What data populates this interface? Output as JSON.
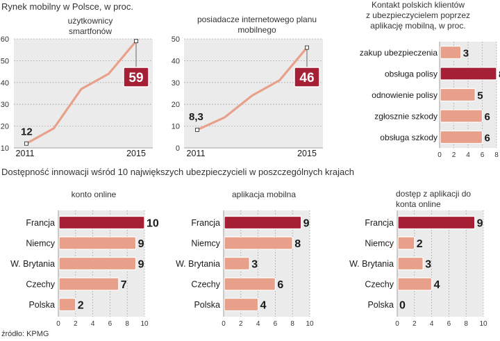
{
  "main_title": "Rynek mobilny w Polsce, w proc.",
  "lower_title": "Dostępność innowacji wśród 10 największych ubezpieczycieli w poszczególnych krajach",
  "source": "źródło: KPMG",
  "colors": {
    "panel": "#ebebeb",
    "grid": "#9a9a9a",
    "line": "#e8a08a",
    "bar": "#e8a08a",
    "bar_dark": "#a52035",
    "callout": "#a52035"
  },
  "chart_data": [
    {
      "id": "smartphone",
      "type": "line",
      "title_lines": [
        "użytkownicy",
        "smartfonów"
      ],
      "x": [
        2011,
        2012,
        2013,
        2014,
        2015
      ],
      "values": [
        12,
        19,
        37,
        44,
        59
      ],
      "x_tick_labels": [
        "2011",
        "2015"
      ],
      "y_ticks": [
        "10",
        "20",
        "30",
        "40",
        "50",
        "60"
      ],
      "ylim": [
        10,
        60
      ],
      "start_label": "12",
      "end_label": "59"
    },
    {
      "id": "internet",
      "type": "line",
      "title_lines": [
        "posiadacze internetowego planu",
        "mobilnego"
      ],
      "x": [
        2011,
        2012,
        2013,
        2014,
        2015
      ],
      "values": [
        8.3,
        14,
        24,
        31,
        46
      ],
      "x_tick_labels": [
        "2011",
        "2015"
      ],
      "y_ticks": [
        "0",
        "10",
        "20",
        "30",
        "40",
        "50"
      ],
      "ylim": [
        0,
        50
      ],
      "start_label": "8,3",
      "end_label": "46"
    },
    {
      "id": "contact",
      "type": "bar",
      "title_lines": [
        "Kontakt polskich klientów",
        "z ubezpieczycielem poprzez",
        "aplikację mobilną, w proc."
      ],
      "categories": [
        "zakup ubezpieczenia",
        "obsługa polisy",
        "odnowienie polisy",
        "zgłosznie szkody",
        "obsługa szkody"
      ],
      "values": [
        3,
        8,
        5,
        6,
        6
      ],
      "highlight": [
        false,
        true,
        false,
        false,
        false
      ],
      "x_ticks": [
        "0",
        "2",
        "4",
        "6",
        "8"
      ],
      "xlim": [
        0,
        8
      ]
    },
    {
      "id": "online",
      "type": "bar",
      "title_lines": [
        "konto online"
      ],
      "categories": [
        "Francja",
        "Niemcy",
        "W. Brytania",
        "Czechy",
        "Polska"
      ],
      "values": [
        10,
        9,
        9,
        7,
        2
      ],
      "highlight": [
        true,
        false,
        false,
        false,
        false
      ],
      "x_ticks": [
        "0",
        "2",
        "4",
        "6",
        "8",
        "10"
      ],
      "xlim": [
        0,
        10
      ]
    },
    {
      "id": "app",
      "type": "bar",
      "title_lines": [
        "aplikacja mobilna"
      ],
      "categories": [
        "Francja",
        "Niemcy",
        "W. Brytania",
        "Czechy",
        "Polska"
      ],
      "values": [
        9,
        8,
        3,
        6,
        4
      ],
      "highlight": [
        true,
        false,
        false,
        false,
        false
      ],
      "x_ticks": [
        "0",
        "2",
        "4",
        "6",
        "8",
        "10"
      ],
      "xlim": [
        0,
        10
      ]
    },
    {
      "id": "access",
      "type": "bar",
      "title_lines": [
        "dostęp z aplikacji do",
        "konta online"
      ],
      "categories": [
        "Francja",
        "Niemcy",
        "W. Brytania",
        "Czechy",
        "Polska"
      ],
      "values": [
        9,
        2,
        3,
        4,
        0
      ],
      "highlight": [
        true,
        false,
        false,
        false,
        false
      ],
      "x_ticks": [
        "0",
        "2",
        "4",
        "6",
        "8",
        "10"
      ],
      "xlim": [
        0,
        10
      ]
    }
  ]
}
